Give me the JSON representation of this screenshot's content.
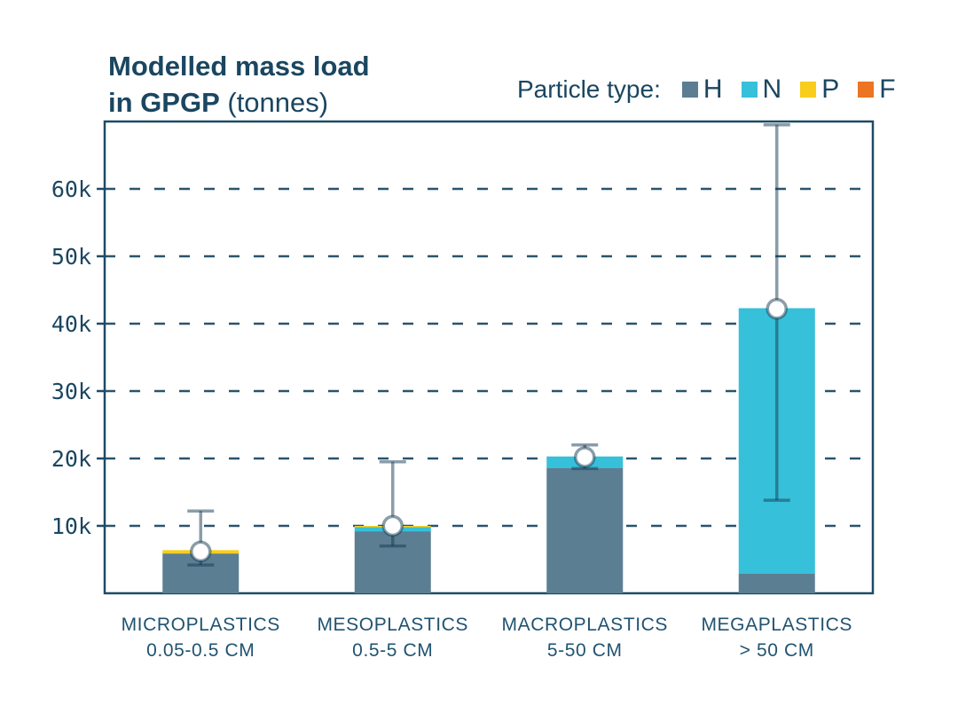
{
  "title": {
    "line1": "Modelled mass load",
    "line2_bold": "in GPGP",
    "line2_unit": "(tonnes)"
  },
  "legend": {
    "label": "Particle type:",
    "items": [
      {
        "key": "H",
        "color": "#5b7e93"
      },
      {
        "key": "N",
        "color": "#36c0da"
      },
      {
        "key": "P",
        "color": "#f9cd1b"
      },
      {
        "key": "F",
        "color": "#ec7423"
      }
    ]
  },
  "chart_data": {
    "type": "bar",
    "stacked": true,
    "title": "Modelled mass load in GPGP (tonnes)",
    "unit": "tonnes",
    "legend_title": "Particle type:",
    "legend_position": "top-right",
    "categories": [
      {
        "name": "MICROPLASTICS",
        "size_range": "0.05-0.5 CM"
      },
      {
        "name": "MESOPLASTICS",
        "size_range": "0.5-5 CM"
      },
      {
        "name": "MACROPLASTICS",
        "size_range": "5-50 CM"
      },
      {
        "name": "MEGAPLASTICS",
        "size_range": "> 50 CM"
      }
    ],
    "series": [
      {
        "name": "H",
        "color": "#5b7e93",
        "values": [
          5900,
          9200,
          18600,
          2900
        ]
      },
      {
        "name": "N",
        "color": "#36c0da",
        "values": [
          0,
          600,
          1700,
          39400
        ]
      },
      {
        "name": "P",
        "color": "#f9cd1b",
        "values": [
          500,
          200,
          0,
          0
        ]
      },
      {
        "name": "F",
        "color": "#ec7423",
        "values": [
          0,
          0,
          0,
          0
        ]
      }
    ],
    "totals": [
      6400,
      10000,
      20300,
      42300
    ],
    "error_bars": {
      "point": [
        6200,
        10000,
        20200,
        42200
      ],
      "low": [
        4200,
        7000,
        18500,
        13800
      ],
      "high": [
        12200,
        19500,
        22000,
        69500
      ]
    },
    "y_axis": {
      "max": 70000,
      "ticks": [
        10000,
        20000,
        30000,
        40000,
        50000,
        60000
      ],
      "tick_labels": [
        "10k",
        "20k",
        "30k",
        "40k",
        "50k",
        "60k"
      ],
      "grid": "dashed"
    }
  },
  "colors": {
    "text": "#1a4660",
    "frame": "#1d4b66",
    "grid": "#2a536d",
    "error_bar": "rgba(22,60,82,0.5)",
    "marker_fill": "#ffffff",
    "background": "#ffffff"
  }
}
